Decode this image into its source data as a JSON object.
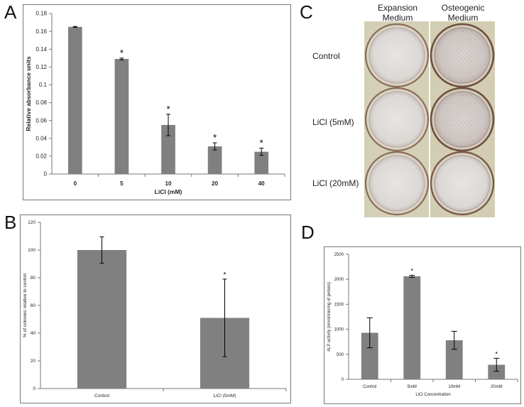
{
  "panels": {
    "a": "A",
    "b": "B",
    "c": "C",
    "d": "D"
  },
  "colors": {
    "bar": "#808080",
    "axis": "#777777",
    "text": "#222222",
    "plate_bg": "#d3cfb7"
  },
  "chart_data": [
    {
      "id": "A",
      "type": "bar",
      "title": "",
      "xlabel": "LiCl (mM)",
      "ylabel": "Relative absorbance units",
      "categories": [
        "0",
        "5",
        "10",
        "20",
        "40"
      ],
      "values": [
        0.165,
        0.129,
        0.055,
        0.031,
        0.025
      ],
      "errors": [
        0.0005,
        0.001,
        0.012,
        0.004,
        0.004
      ],
      "annotations": [
        "",
        "*",
        "*",
        "*",
        "*"
      ],
      "ylim": [
        0,
        0.18
      ],
      "yticks": [
        "0",
        "0.02",
        "0.04",
        "0.06",
        "0.08",
        "0.1",
        "0.12",
        "0.14",
        "0.16",
        "0.18"
      ],
      "grid": false
    },
    {
      "id": "B",
      "type": "bar",
      "title": "",
      "xlabel": "",
      "ylabel": "% of colonies relative to control",
      "categories": [
        "Control",
        "LiCl (5mM)"
      ],
      "values": [
        100,
        51
      ],
      "errors": [
        9.5,
        28
      ],
      "annotations": [
        "",
        "*"
      ],
      "ylim": [
        0,
        120
      ],
      "yticks": [
        "0",
        "20",
        "40",
        "60",
        "80",
        "100",
        "120"
      ],
      "grid": false
    },
    {
      "id": "D",
      "type": "bar",
      "title": "",
      "xlabel": "LiCl Concentration",
      "ylabel": "ALP activity (nmol/min/mg of protein)",
      "categories": [
        "Control",
        "5mM",
        "10mM",
        "20mM"
      ],
      "values": [
        930,
        2060,
        780,
        290
      ],
      "errors": [
        300,
        20,
        180,
        130
      ],
      "annotations": [
        "",
        "*",
        "",
        "*"
      ],
      "ylim": [
        0,
        2500
      ],
      "yticks": [
        "0",
        "500",
        "1000",
        "1500",
        "2000",
        "2500"
      ],
      "grid": false
    }
  ],
  "photo": {
    "columns": [
      {
        "line1": "Expansion",
        "line2": "Medium"
      },
      {
        "line1": "Osteogenic",
        "line2": "Medium"
      }
    ],
    "rows": [
      "Control",
      "LiCl (5mM)",
      "LiCl (20mM)"
    ]
  }
}
